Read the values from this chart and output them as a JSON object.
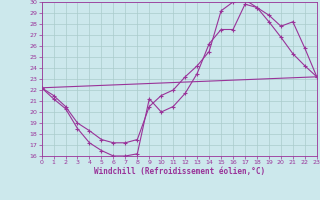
{
  "xlabel": "Windchill (Refroidissement éolien,°C)",
  "bg_color": "#cce8ec",
  "line_color": "#993399",
  "grid_color": "#aacccc",
  "xlim": [
    0,
    23
  ],
  "ylim": [
    16,
    30
  ],
  "xticks": [
    0,
    1,
    2,
    3,
    4,
    5,
    6,
    7,
    8,
    9,
    10,
    11,
    12,
    13,
    14,
    15,
    16,
    17,
    18,
    19,
    20,
    21,
    22,
    23
  ],
  "yticks": [
    16,
    17,
    18,
    19,
    20,
    21,
    22,
    23,
    24,
    25,
    26,
    27,
    28,
    29,
    30
  ],
  "curve1_x": [
    0,
    1,
    2,
    3,
    4,
    5,
    6,
    7,
    8,
    9,
    10,
    11,
    12,
    13,
    14,
    15,
    16,
    17,
    18,
    19,
    20,
    21,
    22,
    23
  ],
  "curve1_y": [
    22.2,
    21.2,
    20.3,
    18.5,
    17.2,
    16.5,
    16.0,
    16.0,
    16.2,
    21.2,
    20.0,
    20.5,
    21.7,
    23.5,
    26.2,
    27.5,
    27.5,
    29.8,
    29.5,
    28.8,
    27.8,
    28.2,
    25.8,
    23.2
  ],
  "curve2_x": [
    0,
    1,
    2,
    3,
    4,
    5,
    6,
    7,
    8,
    9,
    10,
    11,
    12,
    13,
    14,
    15,
    16,
    17,
    18,
    19,
    20,
    21,
    22,
    23
  ],
  "curve2_y": [
    22.2,
    21.5,
    20.5,
    19.0,
    18.3,
    17.5,
    17.2,
    17.2,
    17.5,
    20.5,
    21.5,
    22.0,
    23.2,
    24.2,
    25.5,
    29.2,
    30.0,
    30.2,
    29.5,
    28.2,
    26.8,
    25.3,
    24.2,
    23.2
  ],
  "curve3_x": [
    0,
    23
  ],
  "curve3_y": [
    22.2,
    23.2
  ],
  "figsize": [
    3.2,
    2.0
  ],
  "dpi": 100
}
